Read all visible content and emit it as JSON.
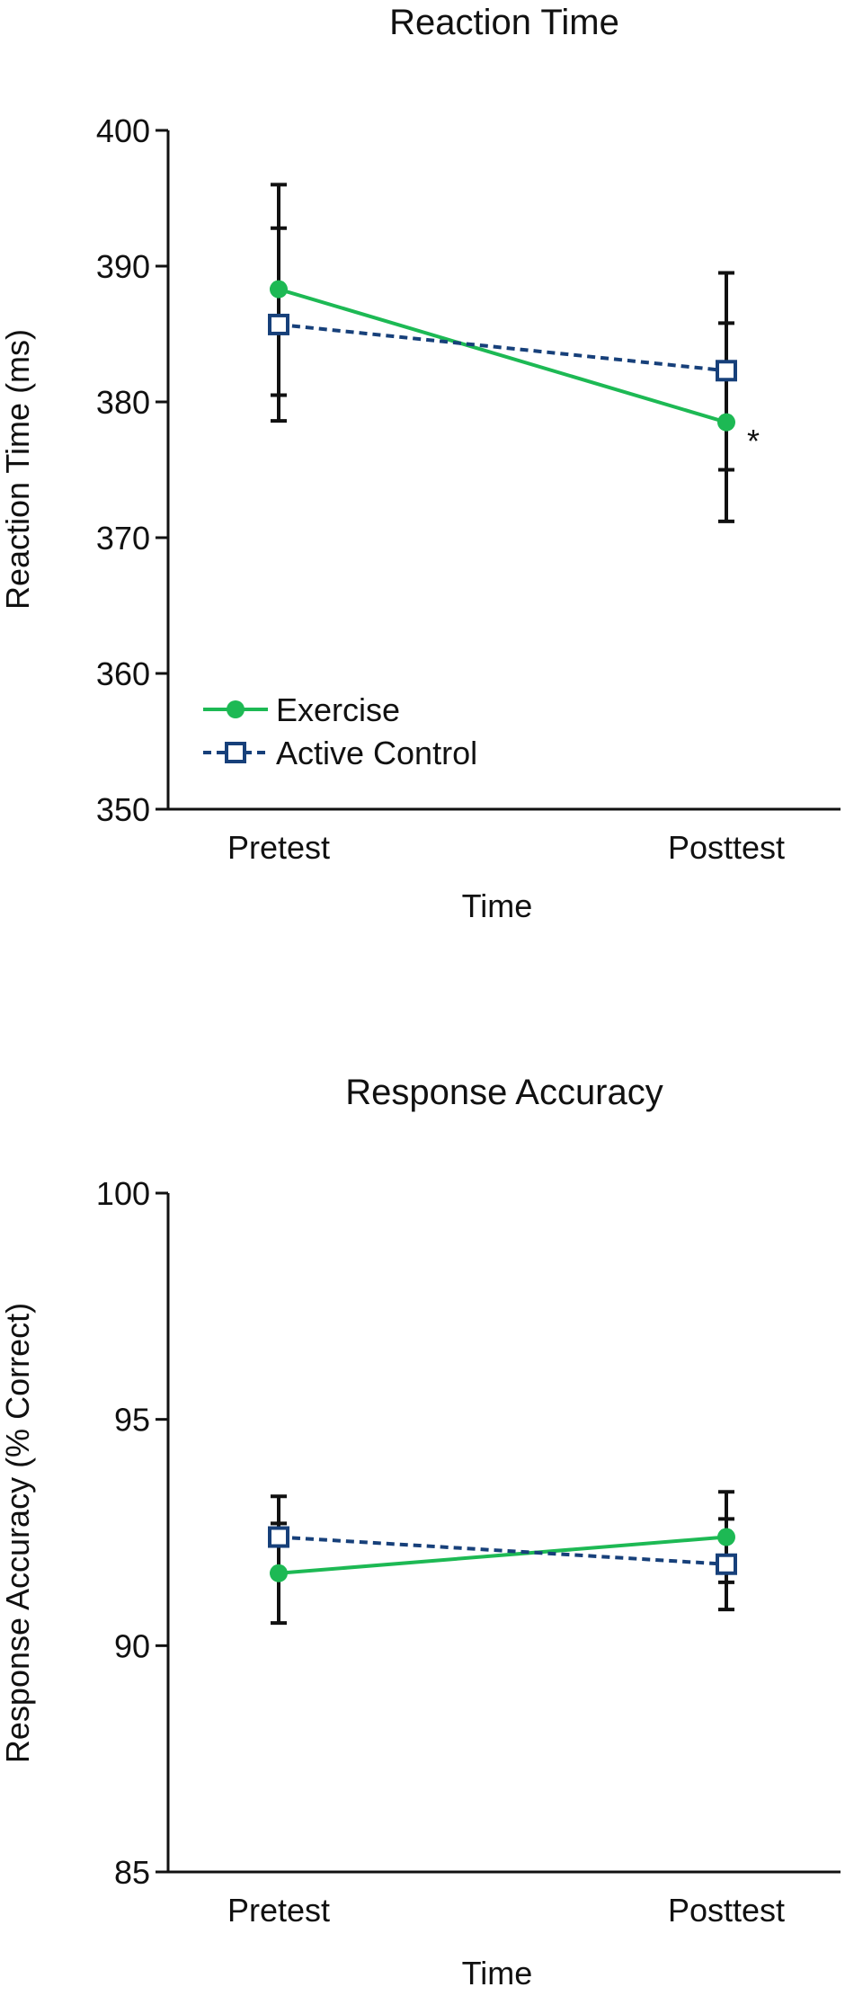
{
  "colors": {
    "exercise": "#1db954",
    "active_control": "#17407a",
    "axis": "#111111",
    "error_bar": "#111111"
  },
  "chart_data": [
    {
      "type": "line",
      "title": "Reaction Time",
      "xlabel": "Time",
      "ylabel": "Reaction Time (ms)",
      "categories": [
        "Pretest",
        "Posttest"
      ],
      "ylim": [
        350,
        400
      ],
      "yticks": [
        350,
        360,
        370,
        380,
        390,
        400
      ],
      "grid": false,
      "legend_position": "bottom-left",
      "series": [
        {
          "name": "Exercise",
          "marker": "filled-circle",
          "line_style": "solid",
          "values": [
            388.3,
            378.5
          ],
          "error_low": [
            380.5,
            371.2
          ],
          "error_high": [
            396.0,
            385.8
          ]
        },
        {
          "name": "Active Control",
          "marker": "open-square",
          "line_style": "dashed",
          "values": [
            385.7,
            382.3
          ],
          "error_low": [
            378.6,
            375.0
          ],
          "error_high": [
            392.8,
            389.5
          ]
        }
      ],
      "annotations": [
        {
          "text": "*",
          "category": "Posttest",
          "y": 377.5
        }
      ]
    },
    {
      "type": "line",
      "title": "Response Accuracy",
      "xlabel": "Time",
      "ylabel": "Response Accuracy (% Correct)",
      "categories": [
        "Pretest",
        "Posttest"
      ],
      "ylim": [
        85,
        100
      ],
      "yticks": [
        85,
        90,
        95,
        100
      ],
      "grid": false,
      "series": [
        {
          "name": "Exercise",
          "marker": "filled-circle",
          "line_style": "solid",
          "values": [
            91.6,
            92.4
          ],
          "error_low": [
            90.5,
            91.4
          ],
          "error_high": [
            92.7,
            93.4
          ]
        },
        {
          "name": "Active Control",
          "marker": "open-square",
          "line_style": "dashed",
          "values": [
            92.4,
            91.8
          ],
          "error_low": [
            91.6,
            90.8
          ],
          "error_high": [
            93.3,
            92.8
          ]
        }
      ]
    }
  ]
}
